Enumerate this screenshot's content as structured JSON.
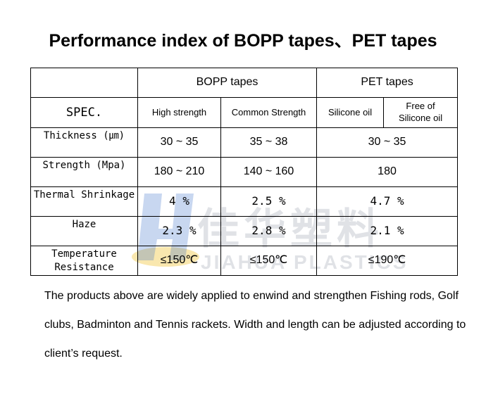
{
  "title": "Performance index of BOPP tapes、PET tapes",
  "table": {
    "spec_label": "SPEC.",
    "groups": {
      "bopp": "BOPP tapes",
      "pet": "PET tapes"
    },
    "subheaders": {
      "high": "High strength",
      "common": "Common Strength",
      "silicone": "Silicone oil",
      "free_line1": "Free of",
      "free_line2": "Silicone oil"
    },
    "rows": [
      {
        "label": "Thickness (㎛)",
        "high": "30 ~ 35",
        "common": "35 ~ 38",
        "pet": "30 ~ 35"
      },
      {
        "label": "Strength (Mpa)",
        "high": "180 ~ 210",
        "common": "140 ~ 160",
        "pet": "180"
      },
      {
        "label": "Thermal Shrinkage",
        "high": "4 %",
        "common": "2.5 %",
        "pet": "4.7 %"
      },
      {
        "label": "Haze",
        "high": "2.3 %",
        "common": "2.8 %",
        "pet": "2.1 %"
      },
      {
        "label_line1": "Temperature",
        "label_line2": "Resistance",
        "high": "≤150℃",
        "common": "≤150℃",
        "pet": "≤190℃"
      }
    ]
  },
  "note": "The products above are widely applied to enwind and strengthen Fishing rods, Golf clubs, Badminton and Tennis rackets. Width and length can be adjusted according to client’s request.",
  "watermark": {
    "cn": "佳华塑料",
    "en": "JIAHUA PLASTICS",
    "logo_icon": "jh-logo-icon"
  },
  "colors": {
    "watermark": "#c8ccd2",
    "logo_blue": "#3a6fc8",
    "logo_yellow": "#f2c94c"
  }
}
